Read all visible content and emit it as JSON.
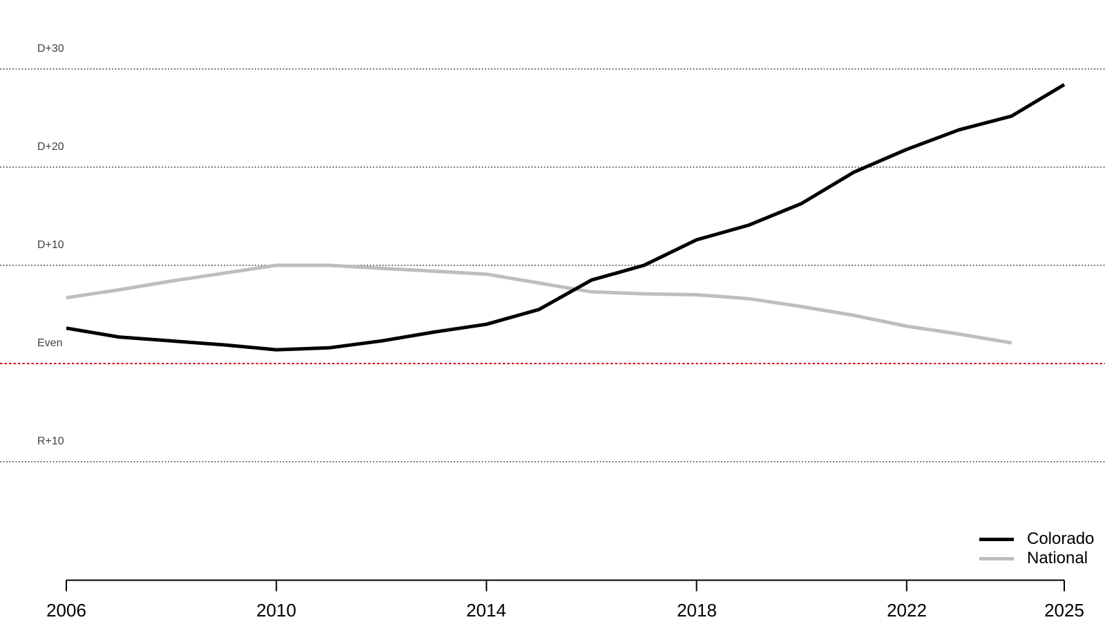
{
  "chart_data": {
    "type": "line",
    "title": "",
    "x_axis": {
      "tick_years": [
        2006,
        2010,
        2014,
        2018,
        2022,
        2025
      ],
      "range": [
        2006,
        2025
      ]
    },
    "y_axis": {
      "ticks": [
        {
          "label": "D+30",
          "value": 30
        },
        {
          "label": "D+20",
          "value": 20
        },
        {
          "label": "D+10",
          "value": 10
        },
        {
          "label": "Even",
          "value": 0
        },
        {
          "label": "R+10",
          "value": -10
        }
      ],
      "range": [
        -13,
        33
      ],
      "grid": "horizontal dotted"
    },
    "series": [
      {
        "name": "Colorado",
        "color": "#000000",
        "x": [
          2006,
          2007,
          2008,
          2009,
          2010,
          2011,
          2012,
          2013,
          2014,
          2015,
          2016,
          2017,
          2018,
          2019,
          2020,
          2021,
          2022,
          2023,
          2024,
          2025
        ],
        "y": [
          3.6,
          2.7,
          2.3,
          1.9,
          1.4,
          1.6,
          2.3,
          3.2,
          4.0,
          5.5,
          8.5,
          10.0,
          12.6,
          14.1,
          16.3,
          19.5,
          21.8,
          23.8,
          25.2,
          28.4
        ]
      },
      {
        "name": "National",
        "color": "#bebebe",
        "x": [
          2006,
          2007,
          2008,
          2009,
          2010,
          2011,
          2012,
          2013,
          2014,
          2015,
          2016,
          2017,
          2018,
          2019,
          2020,
          2021,
          2022,
          2023,
          2024
        ],
        "y": [
          6.7,
          7.5,
          8.4,
          9.2,
          10.0,
          10.0,
          9.7,
          9.4,
          9.1,
          8.2,
          7.3,
          7.1,
          7.0,
          6.6,
          5.8,
          4.9,
          3.8,
          3.0,
          2.1
        ]
      }
    ],
    "legend": {
      "position": "bottom-right",
      "entries": [
        "Colorado",
        "National"
      ]
    },
    "colors": {
      "even_line": "#e00000",
      "gridline": "#4a4a4a",
      "axis": "#000000",
      "y_label": "#404040",
      "x_label": "#000000"
    }
  }
}
